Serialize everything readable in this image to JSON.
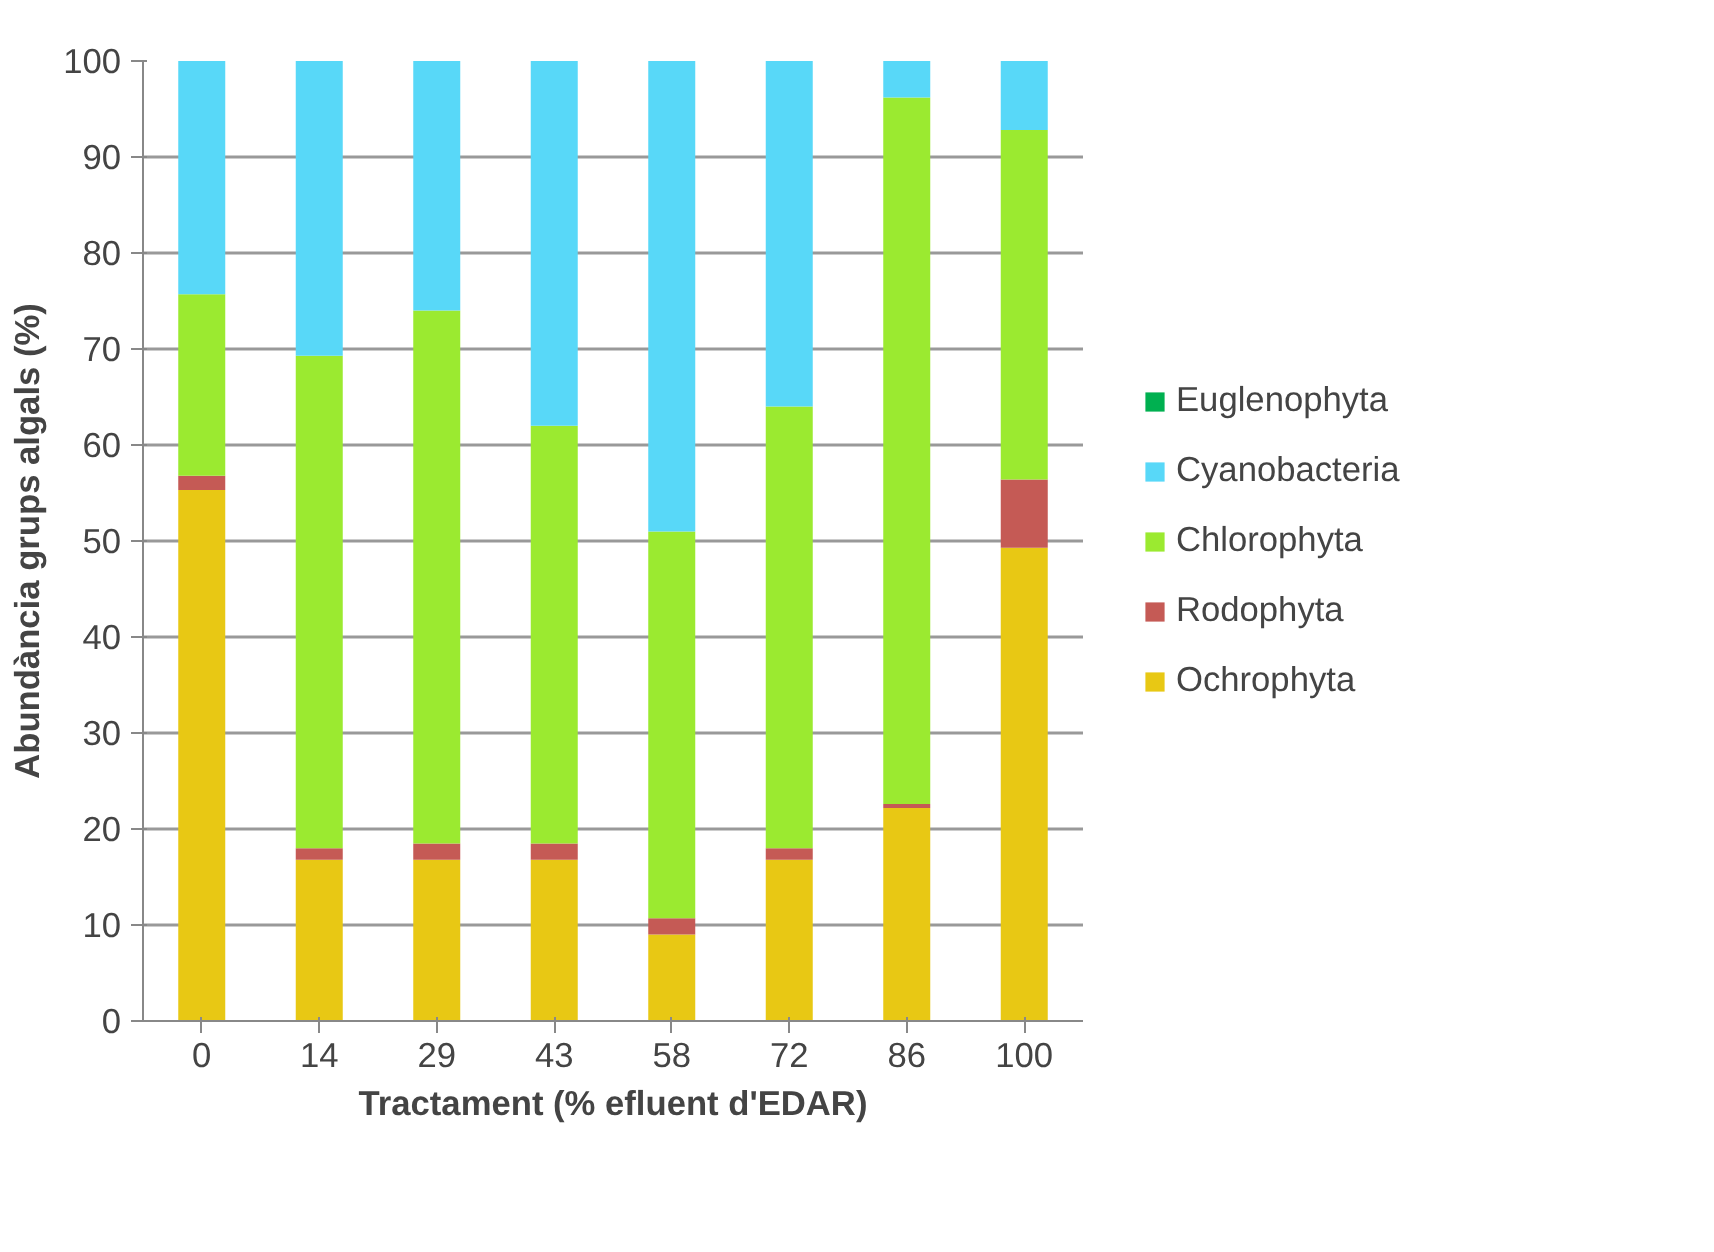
{
  "chart_data": {
    "type": "bar",
    "stacked": true,
    "xlabel": "Tractament (% efluent d'EDAR)",
    "ylabel": "Abundància grups algals (%)",
    "categories": [
      "0",
      "14",
      "29",
      "43",
      "58",
      "72",
      "86",
      "100"
    ],
    "series": [
      {
        "name": "Ochrophyta",
        "color": "#e8c814",
        "values": [
          55.3,
          16.8,
          16.8,
          16.8,
          9.0,
          16.8,
          22.2,
          49.3
        ]
      },
      {
        "name": "Rodophyta",
        "color": "#c55a55",
        "values": [
          1.5,
          1.2,
          1.7,
          1.7,
          1.7,
          1.2,
          0.4,
          7.1
        ]
      },
      {
        "name": "Chlorophyta",
        "color": "#9bea30",
        "values": [
          18.9,
          51.3,
          55.5,
          43.5,
          40.3,
          46.0,
          73.6,
          36.4
        ]
      },
      {
        "name": "Cyanobacteria",
        "color": "#58d8f8",
        "values": [
          24.3,
          30.7,
          26.0,
          38.0,
          49.0,
          36.0,
          3.8,
          7.2
        ]
      },
      {
        "name": "Euglenophyta",
        "color": "#00b050",
        "values": [
          0,
          0,
          0,
          0,
          0,
          0,
          0,
          0
        ]
      }
    ],
    "ylim": [
      0,
      100
    ],
    "yticks": [
      0,
      10,
      20,
      30,
      40,
      50,
      60,
      70,
      80,
      90,
      100
    ],
    "grid": "y",
    "legend": "right"
  }
}
